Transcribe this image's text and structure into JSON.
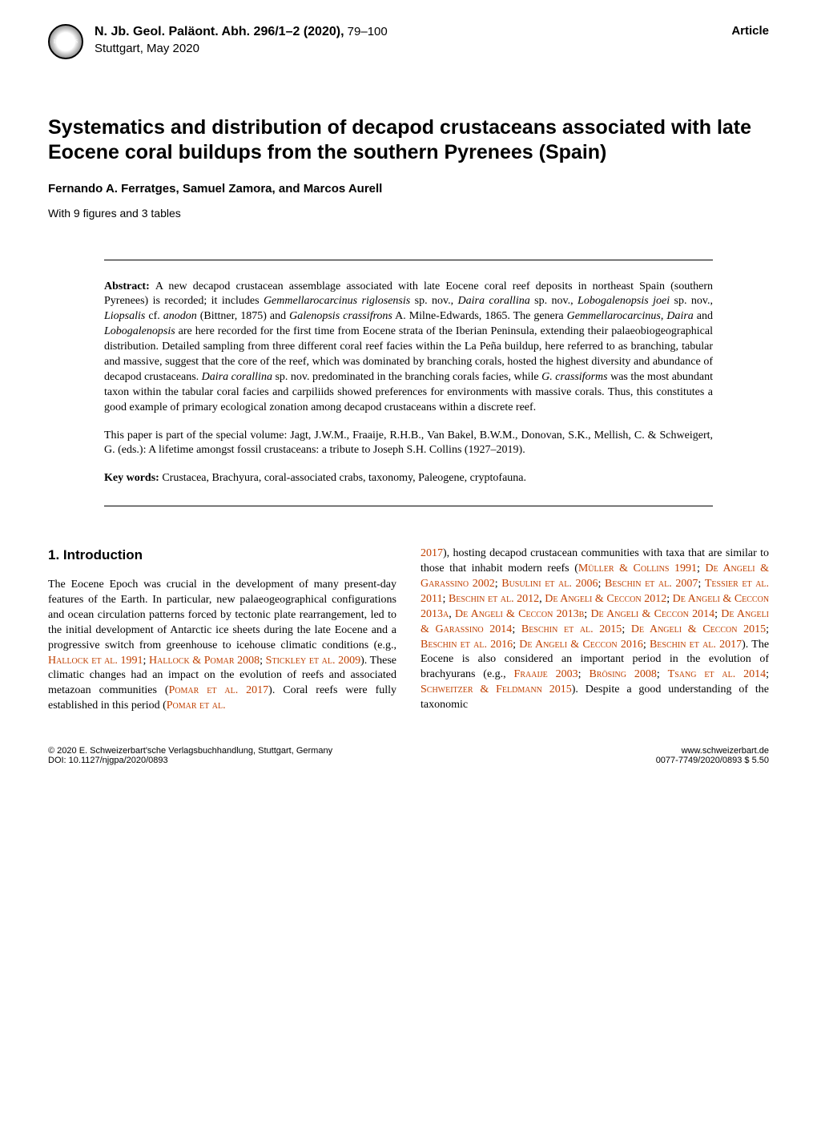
{
  "header": {
    "journal_line": "N. Jb. Geol. Paläont. Abh. 296/1–2 (2020),",
    "pages": " 79–100",
    "city_date": "Stuttgart, May 2020",
    "article_label": "Article"
  },
  "title": "Systematics and distribution of decapod crustaceans associated with late Eocene coral buildups from the southern Pyrenees (Spain)",
  "authors": "Fernando A. Ferratges, Samuel Zamora, and Marcos Aurell",
  "figs": "With 9 figures and 3 tables",
  "abstract": {
    "label": "Abstract: ",
    "text_before_italic1": "A new decapod crustacean assemblage associated with late Eocene coral reef deposits in northeast Spain (southern Pyrenees) is recorded; it includes ",
    "italic1": "Gemmellarocarcinus riglosensis",
    "after_italic1": " sp. nov., ",
    "italic2": "Daira corallina",
    "after_italic2": " sp. nov., ",
    "italic3": "Lobogalenopsis joei",
    "after_italic3": " sp. nov., ",
    "italic4": "Liopsalis",
    "after_italic4": " cf. ",
    "italic5": "anodon",
    "after_italic5": " (Bittner, 1875) and ",
    "italic6": "Galenopsis crassifrons",
    "after_italic6": " A. Milne-Edwards, 1865. The genera ",
    "italic7": "Gemmellarocarcinus",
    "after_italic7": ", ",
    "italic8": "Daira",
    "after_italic8": " and ",
    "italic9": "Lobogalenopsis",
    "after_italic9": " are here recorded for the first time from Eocene strata of the Iberian Peninsula, extending their palaeobiogeographical distribution. Detailed sampling from three different coral reef facies within the La Peña buildup, here referred to as branching, tabular and massive, suggest that the core of the reef, which was dominated by branching corals, hosted the highest diversity and abundance of decapod crustaceans. ",
    "italic10": "Daira corallina",
    "after_italic10": " sp. nov. predominated in the branching corals facies, while ",
    "italic11": "G. crassiforms",
    "after_italic11": " was the most abundant taxon within the tabular coral facies and carpiliids showed preferences for environments with massive corals. Thus, this constitutes a good example of primary ecological zonation among decapod crustaceans within a discrete reef."
  },
  "note": "This paper is part of the special volume: Jagt, J.W.M., Fraaije, R.H.B., Van Bakel, B.W.M., Donovan, S.K., Mellish, C. & Schweigert, G. (eds.): A lifetime amongst fossil crustaceans: a tribute to Joseph S.H. Collins (1927–2019).",
  "keywords": {
    "label": "Key words: ",
    "text": "Crustacea, Brachyura, coral-associated crabs, taxonomy, Paleogene, cryptofauna."
  },
  "section1_heading": "1. Introduction",
  "col_left": {
    "p1a": "The Eocene Epoch was crucial in the development of many present-day features of the Earth. In particular, new palaeogeographical configurations and ocean circulation patterns forced by tectonic plate rearrangement, led to the initial development of Antarctic ice sheets during the late Eocene and a progressive switch from greenhouse to icehouse climatic conditions (e.g., ",
    "ref1": "Hallock et al. 1991",
    "sep1": "; ",
    "ref2": "Hallock & Pomar 2008",
    "sep2": "; ",
    "ref3": "Stickley et al. 2009",
    "p1b": "). These climatic changes had an impact on the evolution of reefs and associated metazoan communities (",
    "ref4": "Pomar et al. 2017",
    "p1c": "). Coral reefs were fully established in this period (",
    "ref5": "Pomar et al."
  },
  "col_right": {
    "ref0": "2017",
    "p1a": "), hosting decapod crustacean communities with taxa that are similar to those that inhabit modern reefs (",
    "ref1": "Müller & Collins 1991",
    "s1": "; ",
    "ref2": "De Angeli & Garassino 2002",
    "s2": "; ",
    "ref3": "Busulini et al. 2006",
    "s3": "; ",
    "ref4": "Beschin et al. 2007",
    "s4": "; ",
    "ref5": "Tessier et al. 2011",
    "s5": "; ",
    "ref6": "Beschin et al. 2012",
    "s6": ", ",
    "ref7": "De Angeli & Ceccon 2012",
    "s7": "; ",
    "ref8": "De Angeli & Ceccon 2013a",
    "s8": ", ",
    "ref9": "De Angeli & Ceccon 2013b",
    "s9": "; ",
    "ref10": "De Angeli & Ceccon 2014",
    "s10": "; ",
    "ref11": "De Angeli & Garassino 2014",
    "s11": "; ",
    "ref12": "Beschin et al. 2015",
    "s12": "; ",
    "ref13": "De Angeli & Ceccon 2015",
    "s13": "; ",
    "ref14": "Beschin et al. 2016",
    "s14": "; ",
    "ref15": "De Angeli & Ceccon 2016",
    "s15": "; ",
    "ref16": "Beschin et al. 2017",
    "p1b": "). The Eocene is also considered an important period in the evolution of brachyurans (e.g., ",
    "ref17": "Fraaije 2003",
    "s17": "; ",
    "ref18": "Brösing 2008",
    "s18": "; ",
    "ref19": "Tsang et al. 2014",
    "s19": "; ",
    "ref20": "Schweitzer & Feldmann 2015",
    "p1c": "). Despite a good understanding of the taxonomic"
  },
  "footer": {
    "left1": "© 2020 E. Schweizerbart'sche Verlagsbuchhandlung, Stuttgart, Germany",
    "left2": "DOI: 10.1127/njgpa/2020/0893",
    "right1": "www.schweizerbart.de",
    "right2": "0077-7749/2020/0893 $ 5.50"
  },
  "colors": {
    "ref_color": "#c04000",
    "text_color": "#000000",
    "bg": "#ffffff"
  },
  "fonts": {
    "body_size_pt": 14,
    "title_size_pt": 25,
    "heading_size_pt": 17
  }
}
